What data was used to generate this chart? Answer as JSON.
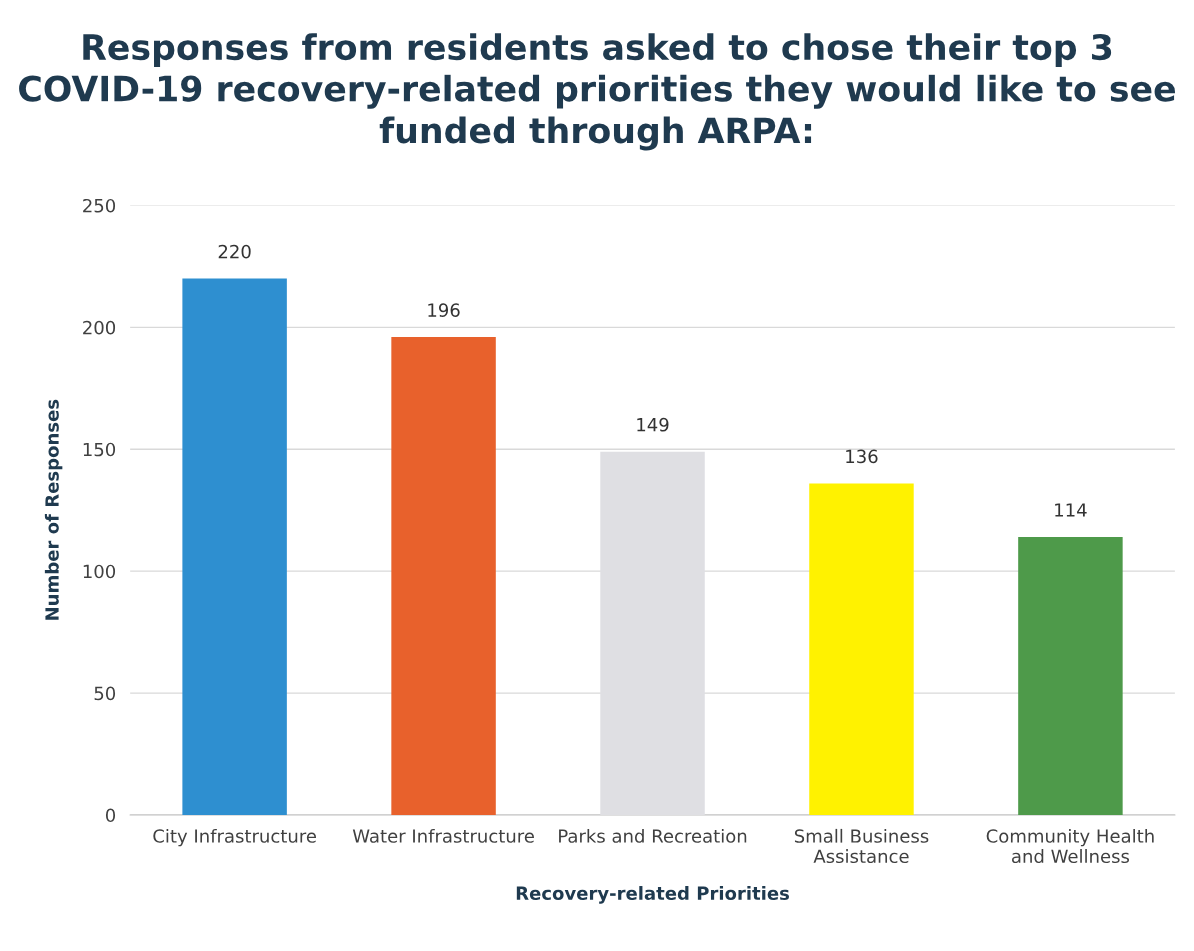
{
  "chart_data": {
    "type": "bar",
    "title": "Responses from residents asked to chose their top 3 COVID-19 recovery-related priorities they would like to see funded through ARPA:",
    "xlabel": "Recovery-related Priorities",
    "ylabel": "Number of Responses",
    "categories": [
      "City Infrastructure",
      "Water Infrastructure",
      "Parks and Recreation",
      "Small Business Assistance",
      "Community Health and Wellness"
    ],
    "values": [
      220,
      196,
      149,
      136,
      114
    ],
    "colors": [
      "#2e8fd0",
      "#e8612c",
      "#dfdfe3",
      "#fff200",
      "#4e9a4a"
    ],
    "ylim": [
      0,
      250
    ],
    "yticks": [
      0,
      50,
      100,
      150,
      200,
      250
    ],
    "grid": "y",
    "data_labels": true
  }
}
